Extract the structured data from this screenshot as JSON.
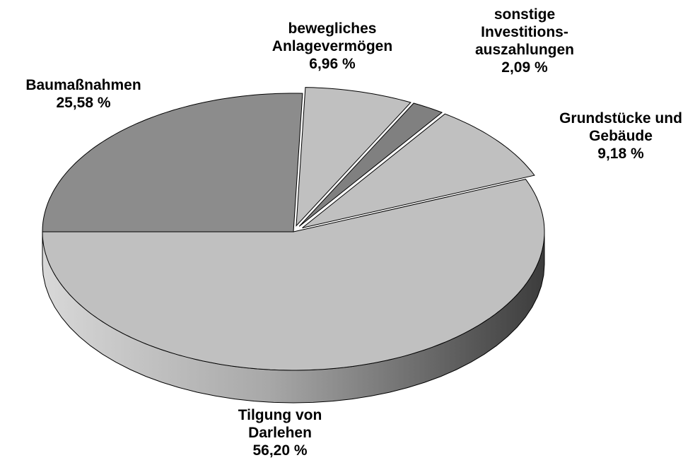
{
  "chart_data": {
    "type": "pie",
    "categories": [
      "Baumaßnahmen",
      "bewegliches Anlagevermögen",
      "sonstige Investitions-auszahlungen",
      "Grundstücke und Gebäude",
      "Tilgung von Darlehen"
    ],
    "values": [
      25.58,
      6.96,
      2.09,
      9.18,
      56.2
    ],
    "value_labels": [
      "25,58 %",
      "6,96 %",
      "2,09 %",
      "9,18 %",
      "56,20 %"
    ],
    "colors": [
      "#8c8c8c",
      "#c0c0c0",
      "#808080",
      "#c0c0c0",
      "#c0c0c0"
    ]
  }
}
